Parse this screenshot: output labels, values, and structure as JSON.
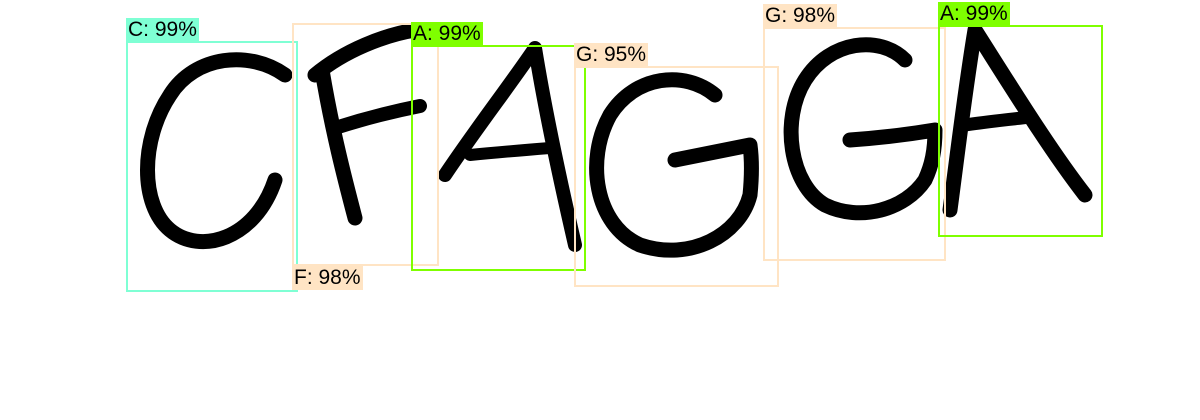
{
  "colors": {
    "C": "#7fffd4",
    "F": "#ffe4c4",
    "A": "#7fff00",
    "G": "#ffe4c4"
  },
  "detections": [
    {
      "letter": "C",
      "label": "C: 99%",
      "color": "#7fffd4"
    },
    {
      "letter": "F",
      "label": "F: 98%",
      "color": "#ffe4c4"
    },
    {
      "letter": "A",
      "label": "A: 99%",
      "color": "#7fff00"
    },
    {
      "letter": "G",
      "label": "G: 95%",
      "color": "#ffe4c4"
    },
    {
      "letter": "G",
      "label": "G: 98%",
      "color": "#ffe4c4"
    },
    {
      "letter": "A",
      "label": "A: 99%",
      "color": "#7fff00"
    }
  ]
}
